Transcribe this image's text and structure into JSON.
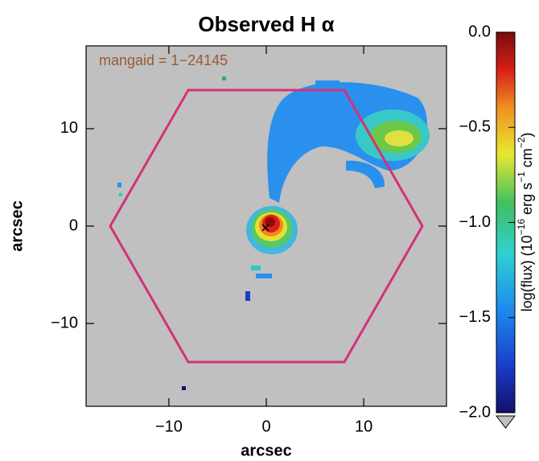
{
  "chart_data": {
    "type": "heatmap",
    "title": "Observed H α",
    "annotation": "mangaid = 1−24145",
    "xlabel": "arcsec",
    "ylabel": "arcsec",
    "xlim": [
      -18.5,
      18.5
    ],
    "ylim": [
      -18.5,
      18.5
    ],
    "xticks": [
      {
        "value": -10,
        "label": "−10"
      },
      0,
      10
    ],
    "yticks": [
      {
        "value": -10,
        "label": "−10"
      },
      0,
      10
    ],
    "colorbar": {
      "lim": [
        -2,
        0
      ],
      "ticks": [
        {
          "value": 0,
          "label": "0.0"
        },
        {
          "value": -0.5,
          "label": "−0.5"
        },
        {
          "value": -1,
          "label": "−1.0"
        },
        {
          "value": -1.5,
          "label": "−1.5"
        },
        {
          "value": -2,
          "label": "−2.0"
        }
      ],
      "label": [
        "log(flux) (10",
        "−16",
        " erg s",
        "−1",
        " cm",
        "−2",
        ")"
      ]
    }
  }
}
